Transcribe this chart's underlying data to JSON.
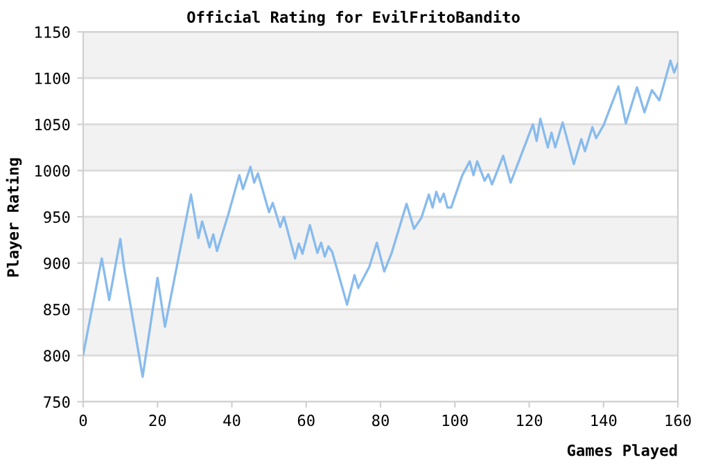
{
  "chart_data": {
    "type": "line",
    "title": "Official Rating for EvilFritoBandito",
    "xlabel": "Games Played",
    "ylabel": "Player Rating",
    "series": [
      {
        "color": "#88bbee",
        "x": [
          0,
          5,
          7,
          10,
          11,
          16,
          20,
          22,
          29,
          31,
          32,
          34,
          35,
          36,
          39,
          42,
          43,
          45,
          46,
          47,
          50,
          51,
          53,
          54,
          57,
          58,
          59,
          61,
          63,
          64,
          65,
          66,
          67,
          71,
          73,
          74,
          77,
          79,
          81,
          83,
          87,
          89,
          91,
          93,
          94,
          95,
          96,
          97,
          98,
          99,
          102,
          104,
          105,
          106,
          108,
          109,
          110,
          113,
          115,
          121,
          122,
          123,
          125,
          126,
          127,
          129,
          132,
          134,
          135,
          137,
          138,
          140,
          144,
          146,
          149,
          151,
          153,
          155,
          156,
          158,
          159,
          160
        ],
        "values": [
          801,
          905,
          860,
          926,
          895,
          777,
          884,
          831,
          974,
          927,
          945,
          917,
          931,
          913,
          952,
          995,
          980,
          1004,
          987,
          997,
          955,
          965,
          939,
          950,
          905,
          921,
          910,
          941,
          911,
          922,
          907,
          918,
          912,
          855,
          887,
          873,
          896,
          922,
          891,
          911,
          964,
          937,
          949,
          974,
          960,
          977,
          966,
          975,
          960,
          960,
          995,
          1010,
          995,
          1010,
          989,
          996,
          985,
          1016,
          987,
          1050,
          1032,
          1056,
          1025,
          1041,
          1025,
          1052,
          1007,
          1034,
          1021,
          1047,
          1035,
          1049,
          1091,
          1051,
          1090,
          1063,
          1087,
          1076,
          1090,
          1119,
          1106,
          1116
        ]
      }
    ],
    "xlim": [
      0,
      160
    ],
    "xticks": [
      0,
      20,
      40,
      60,
      80,
      100,
      120,
      140,
      160
    ],
    "ylim": [
      750,
      1150
    ],
    "yticks": [
      750,
      800,
      850,
      900,
      950,
      1000,
      1050,
      1100,
      1150
    ],
    "grid": "y",
    "bands": [
      {
        "axis": "y",
        "from": 800,
        "to": 850,
        "color": "#f2f2f2"
      },
      {
        "axis": "y",
        "from": 900,
        "to": 950,
        "color": "#f2f2f2"
      },
      {
        "axis": "y",
        "from": 1000,
        "to": 1050,
        "color": "#f2f2f2"
      },
      {
        "axis": "y",
        "from": 1100,
        "to": 1150,
        "color": "#f2f2f2"
      }
    ]
  }
}
